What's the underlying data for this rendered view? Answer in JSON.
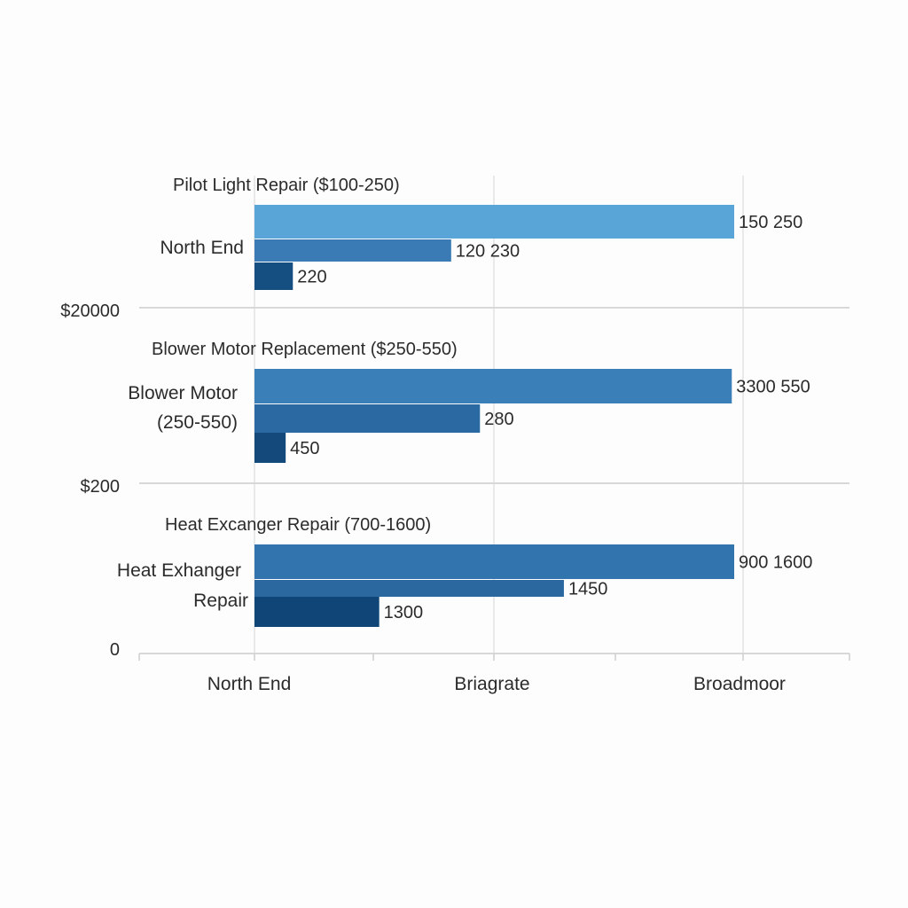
{
  "chart_data": {
    "type": "bar",
    "orientation": "horizontal",
    "title": "",
    "xlabel": "",
    "ylabel": "",
    "x_categories": [
      "North End",
      "Briagrate",
      "Broadmoor"
    ],
    "y_tick_labels": [
      "$20000",
      "$200",
      "0"
    ],
    "grid": true,
    "legend": "none",
    "groups": [
      {
        "heading": "Pilot Light Repair ($100-250)",
        "label_lines": [
          "North End"
        ],
        "bars": [
          {
            "label": "150 250",
            "extent_categories": 2.0,
            "color": "#5aa5d8"
          },
          {
            "label": "120 230",
            "extent_categories": 0.82,
            "color": "#3a7ab5"
          },
          {
            "label": "220",
            "extent_categories": 0.16,
            "color": "#154f82"
          }
        ]
      },
      {
        "heading": "Blower Motor Replacement ($250-550)",
        "label_lines": [
          "Blower Motor",
          "(250-550)"
        ],
        "bars": [
          {
            "label": "3300 550",
            "extent_categories": 1.99,
            "color": "#3b7fb9"
          },
          {
            "label": "280",
            "extent_categories": 0.94,
            "color": "#2a69a1"
          },
          {
            "label": "450",
            "extent_categories": 0.13,
            "color": "#134a7b"
          }
        ]
      },
      {
        "heading": "Heat Excanger Repair (700-1600)",
        "label_lines": [
          "Heat Exhanger",
          "Repair"
        ],
        "bars": [
          {
            "label": "900 1600",
            "extent_categories": 2.0,
            "color": "#3274ad"
          },
          {
            "label": "1450",
            "extent_categories": 1.29,
            "color": "#2b68a0"
          },
          {
            "label": "1300",
            "extent_categories": 0.52,
            "color": "#0f4677"
          }
        ]
      }
    ]
  }
}
